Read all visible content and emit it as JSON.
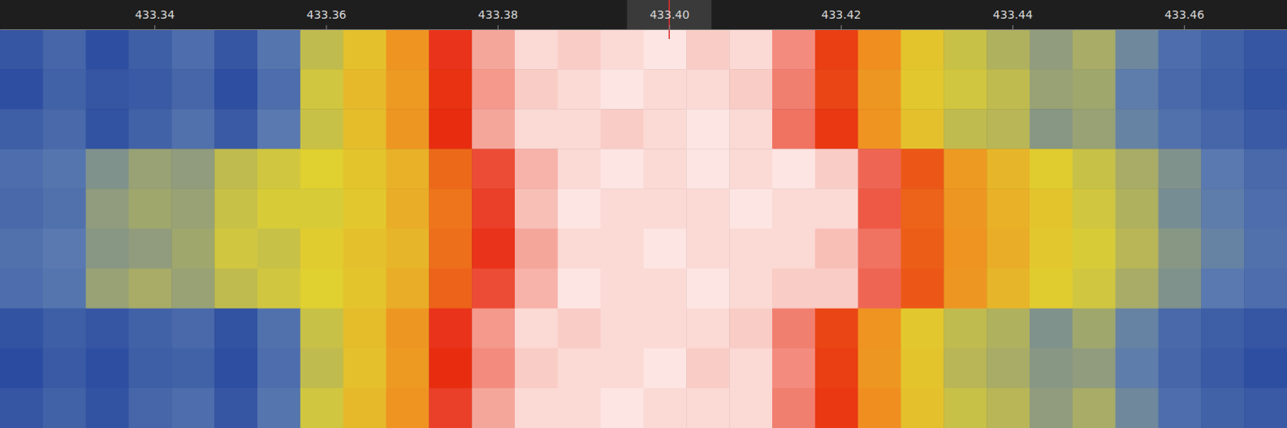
{
  "chart_data": {
    "type": "heatmap",
    "xlim": [
      433.322,
      433.472
    ],
    "xticks": [
      433.34,
      433.36,
      433.38,
      {
        "value": 433.4,
        "label": "433.40"
      },
      433.42,
      433.44,
      433.46
    ],
    "tick_labels": "x",
    "cursor_x": 433.4,
    "zlim": [
      0,
      100
    ],
    "colors": [
      "#020a30",
      "#1a3a9a",
      "#5a7ab0",
      "#e0d030",
      "#f09020",
      "#e82a10",
      "#ffffff"
    ],
    "x": [
      433.3245,
      433.3295,
      433.3345,
      433.3395,
      433.3445,
      433.3495,
      433.3545,
      433.3595,
      433.3645,
      433.3695,
      433.3745,
      433.3795,
      433.3845,
      433.3895,
      433.3945,
      433.3995,
      433.4045,
      433.4095,
      433.4145,
      433.4195,
      433.4245,
      433.4295,
      433.4345,
      433.4395,
      433.4445,
      433.4495,
      433.4545,
      433.4595,
      433.4645,
      433.4695
    ],
    "z": [
      [
        24,
        28,
        22,
        26,
        30,
        24,
        32,
        46,
        54,
        66,
        84,
        93,
        97,
        96,
        97,
        98,
        96,
        97,
        91,
        80,
        67,
        53,
        47,
        44,
        40,
        43,
        36,
        30,
        27,
        24
      ],
      [
        22,
        27,
        24,
        25,
        28,
        22,
        30,
        48,
        56,
        64,
        82,
        92,
        96,
        97,
        98,
        97,
        97,
        96,
        90,
        79,
        65,
        52,
        48,
        46,
        41,
        42,
        34,
        29,
        26,
        23
      ],
      [
        26,
        29,
        23,
        27,
        31,
        25,
        33,
        47,
        55,
        65,
        83,
        93,
        97,
        97,
        96,
        97,
        98,
        97,
        89,
        81,
        66,
        54,
        46,
        45,
        39,
        41,
        35,
        31,
        28,
        25
      ],
      [
        30,
        32,
        38,
        41,
        40,
        46,
        48,
        50,
        53,
        58,
        73,
        86,
        94,
        97,
        98,
        97,
        98,
        97,
        98,
        96,
        88,
        76,
        64,
        57,
        51,
        47,
        43,
        38,
        33,
        29
      ],
      [
        29,
        31,
        40,
        42,
        41,
        47,
        49,
        49,
        52,
        59,
        71,
        85,
        95,
        98,
        97,
        97,
        97,
        98,
        97,
        97,
        87,
        74,
        65,
        58,
        53,
        48,
        44,
        37,
        34,
        30
      ],
      [
        31,
        33,
        39,
        40,
        42,
        48,
        47,
        51,
        54,
        57,
        72,
        84,
        93,
        97,
        97,
        98,
        97,
        97,
        97,
        95,
        89,
        75,
        66,
        59,
        52,
        49,
        45,
        39,
        35,
        31
      ],
      [
        30,
        32,
        41,
        43,
        41,
        46,
        48,
        50,
        53,
        59,
        74,
        86,
        94,
        98,
        97,
        97,
        98,
        97,
        96,
        96,
        88,
        76,
        65,
        57,
        51,
        48,
        43,
        38,
        33,
        30
      ],
      [
        23,
        26,
        24,
        27,
        29,
        23,
        31,
        47,
        55,
        65,
        84,
        92,
        97,
        96,
        97,
        97,
        97,
        96,
        90,
        79,
        66,
        52,
        46,
        44,
        38,
        42,
        35,
        29,
        26,
        24
      ],
      [
        21,
        25,
        22,
        26,
        27,
        22,
        30,
        46,
        54,
        64,
        83,
        91,
        96,
        97,
        97,
        98,
        96,
        97,
        91,
        80,
        65,
        53,
        45,
        43,
        39,
        40,
        34,
        28,
        25,
        22
      ],
      [
        24,
        27,
        23,
        28,
        30,
        24,
        32,
        48,
        56,
        66,
        85,
        93,
        97,
        97,
        98,
        97,
        97,
        97,
        90,
        81,
        67,
        54,
        47,
        45,
        40,
        43,
        36,
        30,
        27,
        25
      ]
    ]
  }
}
